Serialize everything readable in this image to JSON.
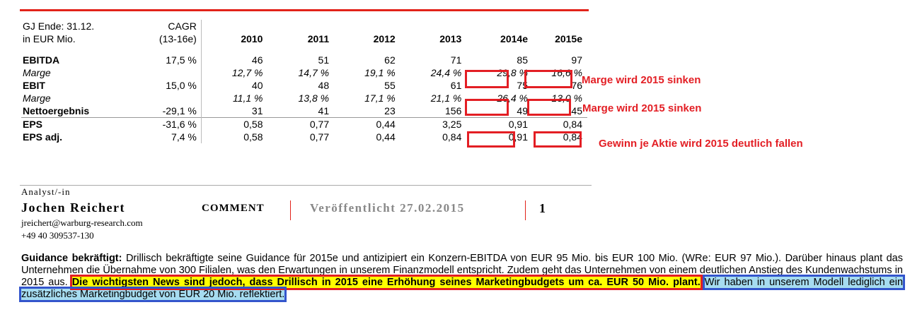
{
  "table": {
    "header_label_line1": "GJ Ende: 31.12.",
    "header_label_line2": "in EUR Mio.",
    "cagr_line1": "CAGR",
    "cagr_line2": "(13-16e)",
    "years": [
      "2010",
      "2011",
      "2012",
      "2013",
      "2014e",
      "2015e"
    ],
    "rows": [
      {
        "label": "EBITDA",
        "cagr": "17,5 %",
        "values": [
          "46",
          "51",
          "62",
          "71",
          "85",
          "97"
        ]
      },
      {
        "label": "Marge",
        "cagr": "",
        "values": [
          "12,7 %",
          "14,7 %",
          "19,1 %",
          "24,4 %",
          "29,8 %",
          "16,6 %"
        ]
      },
      {
        "label": "EBIT",
        "cagr": "15,0 %",
        "values": [
          "40",
          "48",
          "55",
          "61",
          "75",
          "76"
        ]
      },
      {
        "label": "Marge",
        "cagr": "",
        "values": [
          "11,1 %",
          "13,8 %",
          "17,1 %",
          "21,1 %",
          "26,4 %",
          "13,0 %"
        ]
      },
      {
        "label": "Nettoergebnis",
        "cagr": "-29,1 %",
        "values": [
          "31",
          "41",
          "23",
          "156",
          "49",
          "45"
        ]
      },
      {
        "label": "EPS",
        "cagr": "-31,6 %",
        "values": [
          "0,58",
          "0,77",
          "0,44",
          "3,25",
          "0,91",
          "0,84"
        ]
      },
      {
        "label": "EPS adj.",
        "cagr": "7,4 %",
        "values": [
          "0,58",
          "0,77",
          "0,44",
          "0,84",
          "0,91",
          "0,84"
        ]
      }
    ]
  },
  "annotations": {
    "note1": "Marge wird 2015 sinken",
    "note2": "Marge wird 2015 sinken",
    "note3": "Gewinn je Aktie wird 2015 deutlich fallen"
  },
  "analyst": {
    "label": "Analyst/-in",
    "name": "Jochen Reichert",
    "email": "jreichert@warburg-research.com",
    "phone": "+49 40 309537-130"
  },
  "header": {
    "comment": "COMMENT",
    "published": "Veröffentlicht 27.02.2015",
    "page": "1"
  },
  "paragraph": {
    "lead": "Guidance bekräftigt:",
    "text": " Drillisch bekräftigte seine Guidance für 2015e und antizipiert ein Konzern-EBITDA von EUR 95 Mio. bis EUR 100 Mio. (WRe: EUR 97 Mio.). Darüber hinaus plant das Unternehmen die Übernahme von 300 Filialen, was den Erwartungen in unserem Finanzmodell entspricht. Zudem geht das Unternehmen von einem deutlichen Anstieg des Kundenwachstums in 2015 aus. ",
    "highlight_yellow": "Die wichtigsten News sind jedoch, dass Drillisch in 2015 eine Erhöhung seines Marketingbudgets um ca. EUR 50 Mio. plant.",
    "highlight_blue": "Wir haben in unserem Modell lediglich ein zusätzliches Marketingbudget von EUR 20 Mio. reflektiert."
  },
  "colors": {
    "accent_red": "#e31e24",
    "highlight_yellow": "#ffff00",
    "highlight_blue": "#a6dcf0"
  }
}
